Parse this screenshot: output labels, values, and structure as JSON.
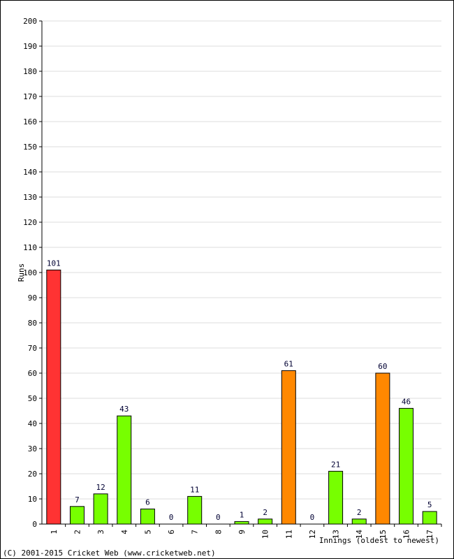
{
  "chart_data": {
    "type": "bar",
    "categories": [
      "1",
      "2",
      "3",
      "4",
      "5",
      "6",
      "7",
      "8",
      "9",
      "10",
      "11",
      "12",
      "13",
      "14",
      "15",
      "16",
      "17"
    ],
    "values": [
      101,
      7,
      12,
      43,
      6,
      0,
      11,
      0,
      1,
      2,
      61,
      0,
      21,
      2,
      60,
      46,
      5
    ],
    "bar_colors": [
      "#ff3333",
      "#77ff00",
      "#77ff00",
      "#77ff00",
      "#77ff00",
      "#77ff00",
      "#77ff00",
      "#77ff00",
      "#77ff00",
      "#77ff00",
      "#ff8800",
      "#77ff00",
      "#77ff00",
      "#77ff00",
      "#ff8800",
      "#77ff00",
      "#77ff00"
    ],
    "ylabel": "Runs",
    "xlabel": "Innings (oldest to newest)",
    "ylim": [
      0,
      200
    ],
    "yticks": [
      0,
      10,
      20,
      30,
      40,
      50,
      60,
      70,
      80,
      90,
      100,
      110,
      120,
      130,
      140,
      150,
      160,
      170,
      180,
      190,
      200
    ],
    "grid": true
  },
  "footer": "(C) 2001-2015 Cricket Web (www.cricketweb.net)"
}
